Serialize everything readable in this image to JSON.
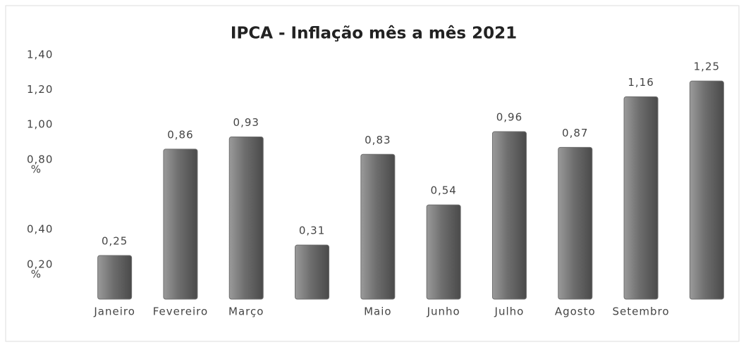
{
  "chart_data": {
    "type": "bar",
    "title": "IPCA - Inflação mês a mês 2021",
    "categories": [
      "Janeiro",
      "Fevereiro",
      "Março",
      null,
      "Maio",
      "Junho",
      "Julho",
      "Agosto",
      "Setembro",
      null
    ],
    "values": [
      0.25,
      0.86,
      0.93,
      0.31,
      0.83,
      0.54,
      0.96,
      0.87,
      1.16,
      1.25
    ],
    "value_labels": [
      "0,25",
      "0,86",
      "0,93",
      "0,31",
      "0,83",
      "0,54",
      "0,96",
      "0,87",
      "1,16",
      "1,25"
    ],
    "color": "#6e6e6e",
    "ylim": [
      0,
      1.4
    ],
    "yticks": [
      {
        "value": 0.2,
        "label": "0,20 %"
      },
      {
        "value": 0.4,
        "label": "0,40"
      },
      {
        "value": 0.8,
        "label": "0,80 %"
      },
      {
        "value": 1.0,
        "label": "1,00"
      },
      {
        "value": 1.2,
        "label": "1,20"
      },
      {
        "value": 1.4,
        "label": "1,40"
      }
    ],
    "grid": false
  }
}
